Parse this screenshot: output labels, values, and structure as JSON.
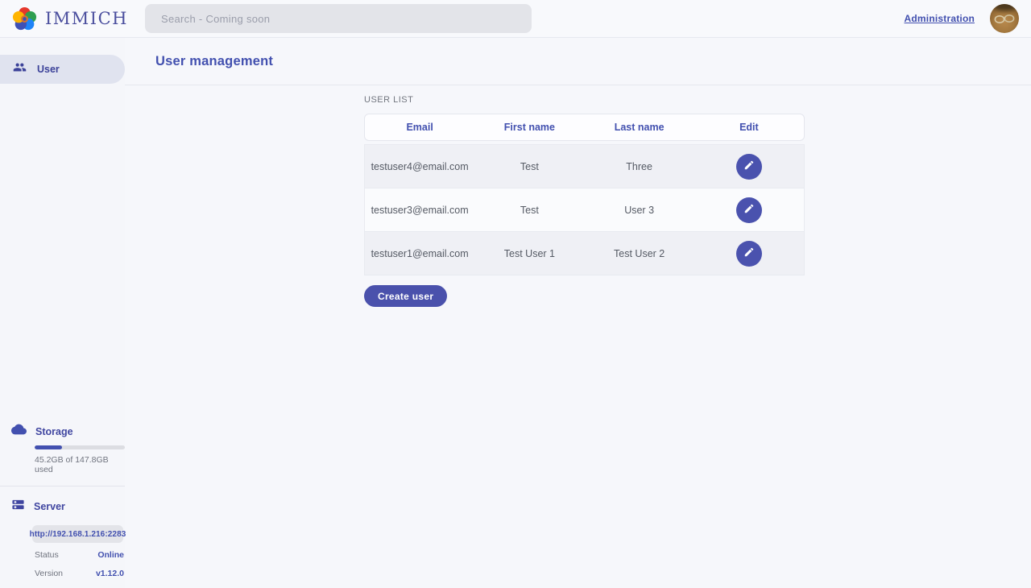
{
  "header": {
    "logo_text": "IMMICH",
    "search_placeholder": "Search - Coming soon",
    "admin_link": "Administration"
  },
  "sidebar": {
    "nav": [
      {
        "label": "User"
      }
    ],
    "storage": {
      "title": "Storage",
      "usage_text": "45.2GB of 147.8GB used",
      "percent_used": 30.6
    },
    "server": {
      "title": "Server",
      "url": "http://192.168.1.216:2283",
      "rows": [
        {
          "label": "Status",
          "value": "Online"
        },
        {
          "label": "Version",
          "value": "v1.12.0"
        }
      ]
    }
  },
  "main": {
    "page_title": "User management",
    "section_title": "USER LIST",
    "table": {
      "columns": [
        "Email",
        "First name",
        "Last name",
        "Edit"
      ],
      "rows": [
        {
          "email": "testuser4@email.com",
          "first_name": "Test",
          "last_name": "Three"
        },
        {
          "email": "testuser3@email.com",
          "first_name": "Test",
          "last_name": "User 3"
        },
        {
          "email": "testuser1@email.com",
          "first_name": "Test User 1",
          "last_name": "Test User 2"
        }
      ]
    },
    "create_button_label": "Create user"
  },
  "colors": {
    "primary": "#4250af",
    "button": "#4a51ac",
    "page_background": "#f6f7fb",
    "active_nav_pill": "#e0e3ef",
    "row_gray": "#eff0f5",
    "row_light": "#fafbfd",
    "online_status": "#4250af"
  }
}
